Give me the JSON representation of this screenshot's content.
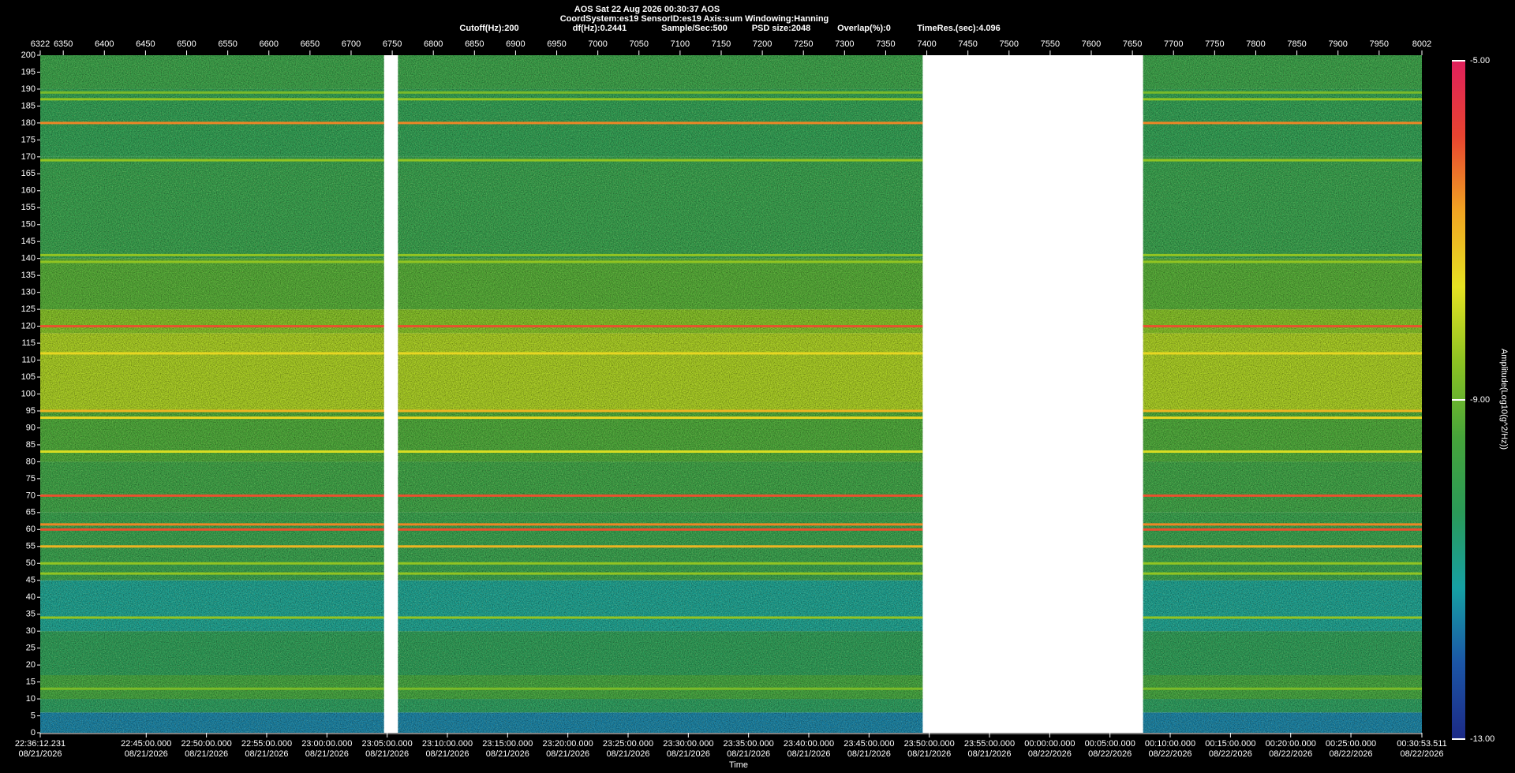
{
  "chart_data": {
    "type": "spectrogram",
    "title": "AOS  Sat 22 Aug 2026 00:30:37  AOS",
    "subtitle": "CoordSystem:es19   SensorID:es19    Axis:sum    Windowing:Hanning",
    "parameters": [
      "Cutoff(Hz):200",
      "df(Hz):0.2441",
      "Sample/Sec:500",
      "PSD size:2048",
      "Overlap(%):0",
      "TimeRes.(sec):4.096"
    ],
    "x_label": "Time",
    "z_label": "Amplitude(Log10(g^2/Hz))",
    "xlim": [
      6322,
      8002
    ],
    "xticks": [
      6322,
      6350,
      6400,
      6450,
      6500,
      6550,
      6600,
      6650,
      6700,
      6750,
      6800,
      6850,
      6900,
      6950,
      7000,
      7050,
      7100,
      7150,
      7200,
      7250,
      7300,
      7350,
      7400,
      7450,
      7500,
      7550,
      7600,
      7650,
      7700,
      7750,
      7800,
      7850,
      7900,
      7950,
      8002
    ],
    "time_ticks": [
      {
        "value": 6322,
        "label": "22:36:12.231",
        "date": "08/21/2026"
      },
      {
        "value": 6450.85,
        "label": "22:45:00.000",
        "date": "08/21/2026"
      },
      {
        "value": 6524.09,
        "label": "22:50:00.000",
        "date": "08/21/2026"
      },
      {
        "value": 6597.33,
        "label": "22:55:00.000",
        "date": "08/21/2026"
      },
      {
        "value": 6670.58,
        "label": "23:00:00.000",
        "date": "08/21/2026"
      },
      {
        "value": 6743.82,
        "label": "23:05:00.000",
        "date": "08/21/2026"
      },
      {
        "value": 6817.06,
        "label": "23:10:00.000",
        "date": "08/21/2026"
      },
      {
        "value": 6890.3,
        "label": "23:15:00.000",
        "date": "08/21/2026"
      },
      {
        "value": 6963.55,
        "label": "23:20:00.000",
        "date": "08/21/2026"
      },
      {
        "value": 7036.79,
        "label": "23:25:00.000",
        "date": "08/21/2026"
      },
      {
        "value": 7110.03,
        "label": "23:30:00.000",
        "date": "08/21/2026"
      },
      {
        "value": 7183.27,
        "label": "23:35:00.000",
        "date": "08/21/2026"
      },
      {
        "value": 7256.51,
        "label": "23:40:00.000",
        "date": "08/21/2026"
      },
      {
        "value": 7329.76,
        "label": "23:45:00.000",
        "date": "08/21/2026"
      },
      {
        "value": 7403.0,
        "label": "23:50:00.000",
        "date": "08/21/2026"
      },
      {
        "value": 7476.24,
        "label": "23:55:00.000",
        "date": "08/21/2026"
      },
      {
        "value": 7549.48,
        "label": "00:00:00.000",
        "date": "08/22/2026"
      },
      {
        "value": 7622.73,
        "label": "00:05:00.000",
        "date": "08/22/2026"
      },
      {
        "value": 7695.97,
        "label": "00:10:00.000",
        "date": "08/22/2026"
      },
      {
        "value": 7769.21,
        "label": "00:15:00.000",
        "date": "08/22/2026"
      },
      {
        "value": 7842.45,
        "label": "00:20:00.000",
        "date": "08/22/2026"
      },
      {
        "value": 7915.69,
        "label": "00:25:00.000",
        "date": "08/22/2026"
      },
      {
        "value": 8002,
        "label": "00:30:53.511",
        "date": "08/22/2026"
      }
    ],
    "ylim": [
      0,
      200
    ],
    "yticks": [
      0,
      5,
      10,
      15,
      20,
      25,
      30,
      35,
      40,
      45,
      50,
      55,
      60,
      65,
      70,
      75,
      80,
      85,
      90,
      95,
      100,
      105,
      110,
      115,
      120,
      125,
      130,
      135,
      140,
      145,
      150,
      155,
      160,
      165,
      170,
      175,
      180,
      185,
      190,
      195,
      200
    ],
    "zlim": [
      -13,
      -5
    ],
    "zticks": [
      {
        "value": -5,
        "label": "-5.00"
      },
      {
        "value": -9,
        "label": "-9.00"
      },
      {
        "value": -13,
        "label": "-13.00"
      }
    ],
    "colorscale": [
      "#1c2a86",
      "#1b55a6",
      "#16a0a4",
      "#2a9a58",
      "#46a43a",
      "#8cc222",
      "#e6e222",
      "#f0a422",
      "#e84430",
      "#e0205c"
    ],
    "segments": [
      [
        6322,
        6740
      ],
      [
        6757,
        7395
      ],
      [
        7663,
        8002
      ]
    ],
    "bands": [
      {
        "from": 0,
        "to": 6,
        "level": -11.6
      },
      {
        "from": 6,
        "to": 10,
        "level": -10.4
      },
      {
        "from": 10,
        "to": 17,
        "level": -9.6
      },
      {
        "from": 17,
        "to": 30,
        "level": -10.3
      },
      {
        "from": 30,
        "to": 45,
        "level": -11.0
      },
      {
        "from": 45,
        "to": 65,
        "level": -10.0
      },
      {
        "from": 65,
        "to": 80,
        "level": -9.8
      },
      {
        "from": 80,
        "to": 95,
        "level": -9.4
      },
      {
        "from": 95,
        "to": 118,
        "level": -8.3
      },
      {
        "from": 118,
        "to": 125,
        "level": -8.7
      },
      {
        "from": 125,
        "to": 140,
        "level": -9.3
      },
      {
        "from": 140,
        "to": 170,
        "level": -10.0
      },
      {
        "from": 170,
        "to": 190,
        "level": -10.2
      },
      {
        "from": 190,
        "to": 200,
        "level": -9.9
      }
    ],
    "lines": [
      {
        "freq": 120,
        "level": -6.0
      },
      {
        "freq": 180,
        "level": -6.5
      },
      {
        "freq": 70,
        "level": -6.0
      },
      {
        "freq": 60,
        "level": -6.0
      },
      {
        "freq": 61.5,
        "level": -6.5
      },
      {
        "freq": 55,
        "level": -7.0
      },
      {
        "freq": 50,
        "level": -8.5
      },
      {
        "freq": 47,
        "level": -8.5
      },
      {
        "freq": 34,
        "level": -8.5
      },
      {
        "freq": 95,
        "level": -7.0
      },
      {
        "freq": 93,
        "level": -7.5
      },
      {
        "freq": 112,
        "level": -7.5
      },
      {
        "freq": 141,
        "level": -8.5
      },
      {
        "freq": 139,
        "level": -8.5
      },
      {
        "freq": 169,
        "level": -8.5
      },
      {
        "freq": 187,
        "level": -8.5
      },
      {
        "freq": 189,
        "level": -8.8
      },
      {
        "freq": 13,
        "level": -8.8
      },
      {
        "freq": 83,
        "level": -7.8
      }
    ]
  }
}
